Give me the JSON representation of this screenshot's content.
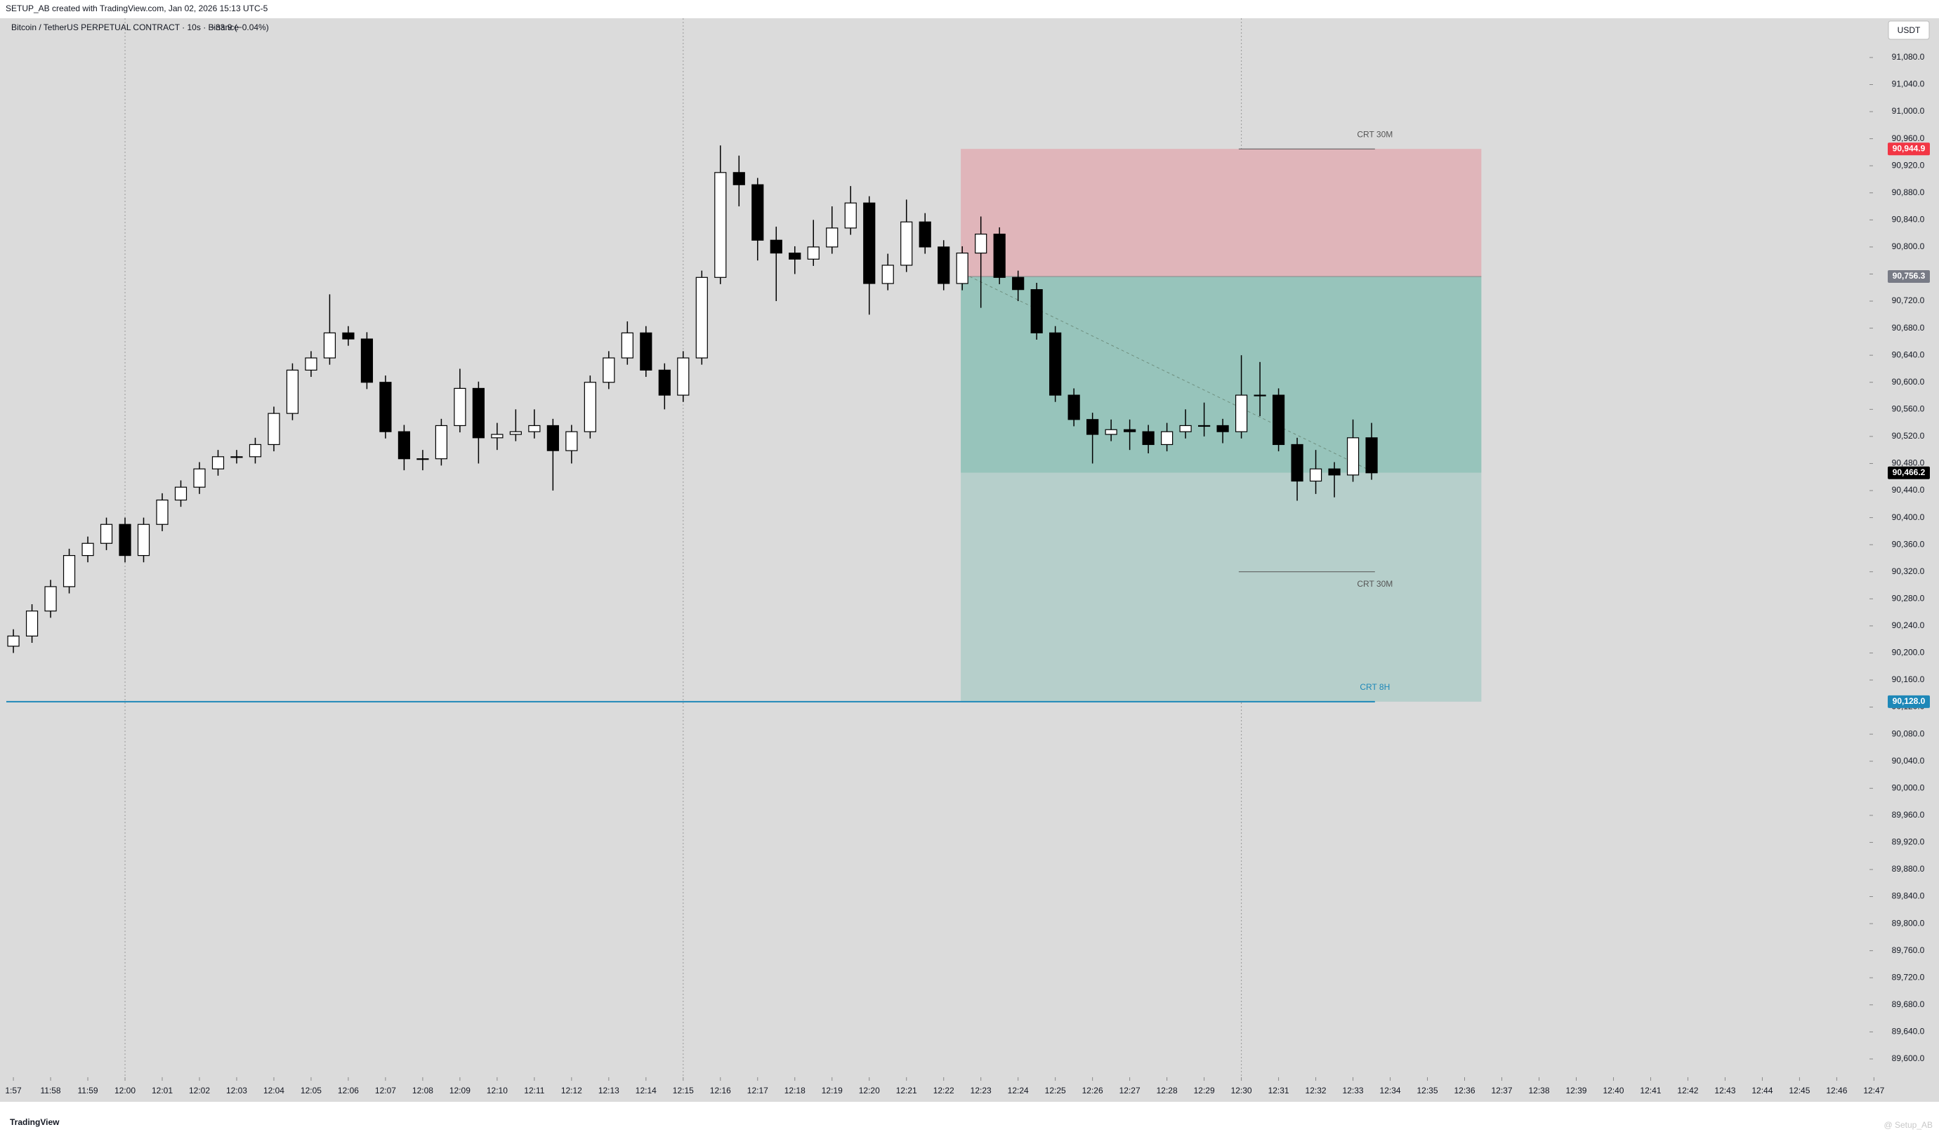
{
  "header": {
    "credit": "SETUP_AB created with TradingView.com, Jan 02, 2026 15:13 UTC-5",
    "symbol": "Bitcoin / TetherUS PERPETUAL CONTRACT · 10s · Binance",
    "change": "−33.9 (−0.04%)",
    "currency": "USDT"
  },
  "footer": {
    "logo": "TradingView",
    "watermark": "@ Setup_AB"
  },
  "chart_data": {
    "type": "candlestick",
    "up_color": "#ffffff",
    "down_color": "#000000",
    "edge_color": "#000000",
    "x": [
      717,
      717.5,
      718,
      718.5,
      719,
      719.5,
      720,
      720.5,
      721,
      721.5,
      722,
      722.5,
      723,
      723.5,
      724,
      724.5,
      725,
      725.5,
      726,
      726.5,
      727,
      727.5,
      728,
      728.5,
      729,
      729.5,
      730,
      730.5,
      731,
      731.5,
      732,
      732.5,
      733,
      733.5,
      734,
      734.5,
      735,
      735.5,
      736,
      736.5,
      737,
      737.5,
      738,
      738.5,
      739,
      739.5,
      740,
      740.5,
      741,
      741.5,
      742,
      742.5,
      743,
      743.5,
      744,
      744.5,
      745,
      745.5,
      746,
      746.5,
      747,
      747.5,
      748,
      748.5,
      749,
      749.5,
      750,
      750.5,
      751,
      751.5,
      752,
      752.5,
      753,
      753.5
    ],
    "open": [
      90210,
      90225,
      90262,
      90298,
      90344,
      90362,
      90390,
      90344,
      90390,
      90426,
      90445,
      90472,
      90490,
      90490,
      90508,
      90554,
      90618,
      90636,
      90673,
      90664,
      90600,
      90527,
      90487,
      90487,
      90536,
      90591,
      90518,
      90523,
      90527,
      90536,
      90499,
      90527,
      90600,
      90636,
      90673,
      90618,
      90581,
      90636,
      90755,
      90910,
      90892,
      90810,
      90791,
      90782,
      90800,
      90828,
      90865,
      90746,
      90773,
      90837,
      90800,
      90746,
      90791,
      90819,
      90755,
      90737,
      90673,
      90581,
      90545,
      90523,
      90530,
      90527,
      90508,
      90527,
      90536,
      90536,
      90527,
      90581,
      90581,
      90508,
      90454,
      90472,
      90463,
      90518
    ],
    "high": [
      90235,
      90272,
      90308,
      90354,
      90372,
      90400,
      90400,
      90400,
      90436,
      90455,
      90482,
      90500,
      90500,
      90518,
      90564,
      90628,
      90646,
      90730,
      90683,
      90674,
      90610,
      90537,
      90500,
      90546,
      90620,
      90601,
      90540,
      90560,
      90560,
      90546,
      90537,
      90610,
      90646,
      90690,
      90683,
      90628,
      90646,
      90765,
      90950,
      90935,
      90902,
      90830,
      90801,
      90840,
      90860,
      90890,
      90875,
      90790,
      90870,
      90850,
      90810,
      90801,
      90845,
      90829,
      90765,
      90747,
      90683,
      90591,
      90555,
      90545,
      90545,
      90537,
      90540,
      90560,
      90570,
      90546,
      90640,
      90630,
      90591,
      90518,
      90500,
      90482,
      90545,
      90540
    ],
    "low": [
      90200,
      90215,
      90252,
      90288,
      90334,
      90352,
      90334,
      90334,
      90380,
      90416,
      90435,
      90462,
      90480,
      90480,
      90498,
      90544,
      90608,
      90626,
      90654,
      90590,
      90517,
      90470,
      90470,
      90477,
      90526,
      90480,
      90500,
      90513,
      90517,
      90440,
      90480,
      90517,
      90590,
      90626,
      90608,
      90560,
      90571,
      90626,
      90745,
      90860,
      90780,
      90720,
      90760,
      90772,
      90790,
      90818,
      90700,
      90736,
      90763,
      90790,
      90736,
      90736,
      90710,
      90745,
      90720,
      90663,
      90571,
      90535,
      90480,
      90513,
      90500,
      90495,
      90498,
      90517,
      90520,
      90510,
      90517,
      90550,
      90498,
      90425,
      90435,
      90430,
      90453,
      90456
    ],
    "close": [
      90225,
      90262,
      90298,
      90344,
      90362,
      90390,
      90344,
      90390,
      90426,
      90445,
      90472,
      90490,
      90490,
      90508,
      90554,
      90618,
      90636,
      90673,
      90664,
      90600,
      90527,
      90487,
      90487,
      90536,
      90591,
      90518,
      90523,
      90527,
      90536,
      90499,
      90527,
      90600,
      90636,
      90673,
      90618,
      90581,
      90636,
      90755,
      90910,
      90892,
      90810,
      90791,
      90782,
      90800,
      90828,
      90865,
      90746,
      90773,
      90837,
      90800,
      90746,
      90791,
      90819,
      90755,
      90737,
      90673,
      90581,
      90545,
      90523,
      90530,
      90527,
      90508,
      90527,
      90536,
      90536,
      90527,
      90581,
      90581,
      90508,
      90454,
      90472,
      90463,
      90518,
      90466.2
    ],
    "xlim": [
      716.81,
      766.88
    ],
    "ylim": [
      89573,
      91138
    ],
    "xticks": [
      {
        "value": 717,
        "label": "1:57"
      },
      {
        "value": 718,
        "label": "11:58"
      },
      {
        "value": 719,
        "label": "11:59"
      },
      {
        "value": 720,
        "label": "12:00"
      },
      {
        "value": 721,
        "label": "12:01"
      },
      {
        "value": 722,
        "label": "12:02"
      },
      {
        "value": 723,
        "label": "12:03"
      },
      {
        "value": 724,
        "label": "12:04"
      },
      {
        "value": 725,
        "label": "12:05"
      },
      {
        "value": 726,
        "label": "12:06"
      },
      {
        "value": 727,
        "label": "12:07"
      },
      {
        "value": 728,
        "label": "12:08"
      },
      {
        "value": 729,
        "label": "12:09"
      },
      {
        "value": 730,
        "label": "12:10"
      },
      {
        "value": 731,
        "label": "12:11"
      },
      {
        "value": 732,
        "label": "12:12"
      },
      {
        "value": 733,
        "label": "12:13"
      },
      {
        "value": 734,
        "label": "12:14"
      },
      {
        "value": 735,
        "label": "12:15"
      },
      {
        "value": 736,
        "label": "12:16"
      },
      {
        "value": 737,
        "label": "12:17"
      },
      {
        "value": 738,
        "label": "12:18"
      },
      {
        "value": 739,
        "label": "12:19"
      },
      {
        "value": 740,
        "label": "12:20"
      },
      {
        "value": 741,
        "label": "12:21"
      },
      {
        "value": 742,
        "label": "12:22"
      },
      {
        "value": 743,
        "label": "12:23"
      },
      {
        "value": 744,
        "label": "12:24"
      },
      {
        "value": 745,
        "label": "12:25"
      },
      {
        "value": 746,
        "label": "12:26"
      },
      {
        "value": 747,
        "label": "12:27"
      },
      {
        "value": 748,
        "label": "12:28"
      },
      {
        "value": 749,
        "label": "12:29"
      },
      {
        "value": 750,
        "label": "12:30"
      },
      {
        "value": 751,
        "label": "12:31"
      },
      {
        "value": 752,
        "label": "12:32"
      },
      {
        "value": 753,
        "label": "12:33"
      },
      {
        "value": 754,
        "label": "12:34"
      },
      {
        "value": 755,
        "label": "12:35"
      },
      {
        "value": 756,
        "label": "12:36"
      },
      {
        "value": 757,
        "label": "12:37"
      },
      {
        "value": 758,
        "label": "12:38"
      },
      {
        "value": 759,
        "label": "12:39"
      },
      {
        "value": 760,
        "label": "12:40"
      },
      {
        "value": 761,
        "label": "12:41"
      },
      {
        "value": 762,
        "label": "12:42"
      },
      {
        "value": 763,
        "label": "12:43"
      },
      {
        "value": 764,
        "label": "12:44"
      },
      {
        "value": 765,
        "label": "12:45"
      },
      {
        "value": 766,
        "label": "12:46"
      },
      {
        "value": 767,
        "label": "12:47"
      }
    ],
    "yticks": [
      {
        "value": 89600,
        "label": "89,600.0"
      },
      {
        "value": 89640,
        "label": "89,640.0"
      },
      {
        "value": 89680,
        "label": "89,680.0"
      },
      {
        "value": 89720,
        "label": "89,720.0"
      },
      {
        "value": 89760,
        "label": "89,760.0"
      },
      {
        "value": 89800,
        "label": "89,800.0"
      },
      {
        "value": 89840,
        "label": "89,840.0"
      },
      {
        "value": 89880,
        "label": "89,880.0"
      },
      {
        "value": 89920,
        "label": "89,920.0"
      },
      {
        "value": 89960,
        "label": "89,960.0"
      },
      {
        "value": 90000,
        "label": "90,000.0"
      },
      {
        "value": 90040,
        "label": "90,040.0"
      },
      {
        "value": 90080,
        "label": "90,080.0"
      },
      {
        "value": 90120,
        "label": "90,120.0"
      },
      {
        "value": 90160,
        "label": "90,160.0"
      },
      {
        "value": 90200,
        "label": "90,200.0"
      },
      {
        "value": 90240,
        "label": "90,240.0"
      },
      {
        "value": 90280,
        "label": "90,280.0"
      },
      {
        "value": 90320,
        "label": "90,320.0"
      },
      {
        "value": 90360,
        "label": "90,360.0"
      },
      {
        "value": 90400,
        "label": "90,400.0"
      },
      {
        "value": 90440,
        "label": "90,440.0"
      },
      {
        "value": 90480,
        "label": "90,480.0"
      },
      {
        "value": 90520,
        "label": "90,520.0"
      },
      {
        "value": 90560,
        "label": "90,560.0"
      },
      {
        "value": 90600,
        "label": "90,600.0"
      },
      {
        "value": 90640,
        "label": "90,640.0"
      },
      {
        "value": 90680,
        "label": "90,680.0"
      },
      {
        "value": 90720,
        "label": "90,720.0"
      },
      {
        "value": 90760,
        "label": "90,760.0"
      },
      {
        "value": 90800,
        "label": "90,800.0"
      },
      {
        "value": 90840,
        "label": "90,840.0"
      },
      {
        "value": 90880,
        "label": "90,880.0"
      },
      {
        "value": 90920,
        "label": "90,920.0"
      },
      {
        "value": 90960,
        "label": "90,960.0"
      },
      {
        "value": 91000,
        "label": "91,000.0"
      },
      {
        "value": 91040,
        "label": "91,040.0"
      },
      {
        "value": 91080,
        "label": "91,080.0"
      }
    ],
    "vlines": [
      720,
      735,
      750
    ],
    "position": {
      "x": [
        742.46,
        756.45
      ],
      "stop": 90944.9,
      "entry": 90756.3,
      "current": 90466.2,
      "target": 90128,
      "trend_x": [
        742.7,
        753.59
      ]
    },
    "levels": [
      {
        "name": "CRT 30M",
        "value": 90944.9,
        "x": [
          749.93,
          753.59
        ],
        "color": "#555555"
      },
      {
        "name": "CRT 30M",
        "value": 90320,
        "x": [
          749.93,
          753.59
        ],
        "color": "#555555"
      },
      {
        "name": "CRT 8H",
        "value": 90128,
        "x": [
          716.81,
          753.59
        ],
        "color": "#1e88b8"
      }
    ],
    "price_tags": [
      {
        "value": 90944.9,
        "label": "90,944.9",
        "color": "#f23645"
      },
      {
        "value": 90756.3,
        "label": "90,756.3",
        "color": "#787b86"
      },
      {
        "value": 90466.2,
        "label": "90,466.2",
        "color": "#000000"
      },
      {
        "value": 90128,
        "label": "90,128.0",
        "color": "#1e88b8"
      }
    ]
  }
}
